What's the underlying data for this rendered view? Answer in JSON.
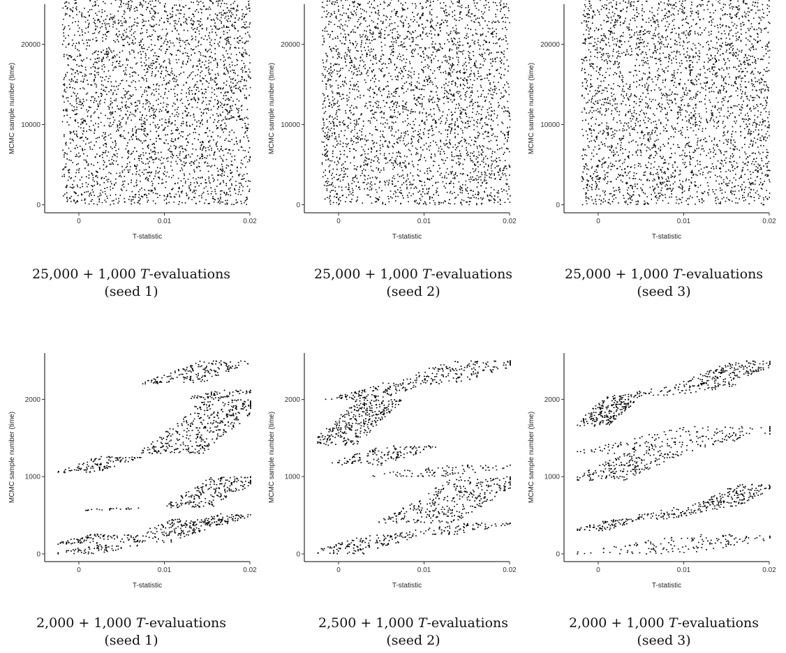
{
  "chart_data": [
    {
      "type": "scatter",
      "xlabel": "T-statistic",
      "ylabel": "MCMC sample number (time)",
      "xlim": [
        -0.004,
        0.02
      ],
      "ylim": [
        -1000,
        25000
      ],
      "x_ticks": [
        0,
        0.01,
        0.02
      ],
      "x_tick_labels": [
        "0",
        "0.01",
        "0.02"
      ],
      "y_ticks": [
        0,
        10000,
        20000
      ],
      "y_tick_labels": [
        "0",
        "10000",
        "20000"
      ],
      "grid": false,
      "caption_prefix": "25,000 + 1,000 ",
      "caption_var": "T",
      "caption_suffix": "-evaluations",
      "caption_seed": "(seed 1)",
      "pattern": "dense",
      "seed": 1,
      "n_samples": 26000
    },
    {
      "type": "scatter",
      "xlabel": "T-statistic",
      "ylabel": "MCMC sample number (time)",
      "xlim": [
        -0.004,
        0.02
      ],
      "ylim": [
        -1000,
        25000
      ],
      "x_ticks": [
        0,
        0.01,
        0.02
      ],
      "x_tick_labels": [
        "0",
        "0.01",
        "0.02"
      ],
      "y_ticks": [
        0,
        10000,
        20000
      ],
      "y_tick_labels": [
        "0",
        "10000",
        "20000"
      ],
      "grid": false,
      "caption_prefix": "25,000 + 1,000 ",
      "caption_var": "T",
      "caption_suffix": "-evaluations",
      "caption_seed": "(seed 2)",
      "pattern": "dense",
      "seed": 2,
      "n_samples": 26000
    },
    {
      "type": "scatter",
      "xlabel": "T-statistic",
      "ylabel": "MCMC sample number (time)",
      "xlim": [
        -0.004,
        0.02
      ],
      "ylim": [
        -1000,
        25000
      ],
      "x_ticks": [
        0,
        0.01,
        0.02
      ],
      "x_tick_labels": [
        "0",
        "0.01",
        "0.02"
      ],
      "y_ticks": [
        0,
        10000,
        20000
      ],
      "y_tick_labels": [
        "0",
        "10000",
        "20000"
      ],
      "grid": false,
      "caption_prefix": "25,000 + 1,000 ",
      "caption_var": "T",
      "caption_suffix": "-evaluations",
      "caption_seed": "(seed 3)",
      "pattern": "dense",
      "seed": 3,
      "n_samples": 26000
    },
    {
      "type": "scatter",
      "xlabel": "T-statistic",
      "ylabel": "MCMC sample number (time)",
      "xlim": [
        -0.004,
        0.02
      ],
      "ylim": [
        -100,
        2600
      ],
      "x_ticks": [
        0,
        0.01,
        0.02
      ],
      "x_tick_labels": [
        "0",
        "0.01",
        "0.02"
      ],
      "y_ticks": [
        0,
        1000,
        2000
      ],
      "y_tick_labels": [
        "0",
        "1000",
        "2000"
      ],
      "grid": false,
      "caption_prefix": "2,000 + 1,000 ",
      "caption_var": "T",
      "caption_suffix": "-evaluations",
      "caption_seed": "(seed 1)",
      "pattern": "sparse",
      "seed": 11,
      "n_samples": 2500,
      "clusters": [
        {
          "t0": 0,
          "t1": 120,
          "x0": -0.002,
          "x1": 0.006
        },
        {
          "t0": 120,
          "t1": 260,
          "x0": -0.002,
          "x1": 0.005
        },
        {
          "t0": 150,
          "t1": 450,
          "x0": 0.006,
          "x1": 0.016
        },
        {
          "t0": 360,
          "t1": 520,
          "x0": 0.013,
          "x1": 0.02
        },
        {
          "t0": 560,
          "t1": 600,
          "x0": 0.001,
          "x1": 0.007
        },
        {
          "t0": 600,
          "t1": 1000,
          "x0": 0.011,
          "x1": 0.02
        },
        {
          "t0": 1050,
          "t1": 1260,
          "x0": -0.0015,
          "x1": 0.006
        },
        {
          "t0": 1300,
          "t1": 2000,
          "x0": 0.009,
          "x1": 0.02
        },
        {
          "t0": 2000,
          "t1": 2120,
          "x0": 0.013,
          "x1": 0.02
        },
        {
          "t0": 2200,
          "t1": 2500,
          "x0": 0.009,
          "x1": 0.019
        }
      ]
    },
    {
      "type": "scatter",
      "xlabel": "T-statistic",
      "ylabel": "MCMC sample number (time)",
      "xlim": [
        -0.004,
        0.02
      ],
      "ylim": [
        -100,
        2600
      ],
      "x_ticks": [
        0,
        0.01,
        0.02
      ],
      "x_tick_labels": [
        "0",
        "0.01",
        "0.02"
      ],
      "y_ticks": [
        0,
        1000,
        2000
      ],
      "y_tick_labels": [
        "0",
        "1000",
        "2000"
      ],
      "grid": false,
      "caption_prefix": "2,500 + 1,000 ",
      "caption_var": "T",
      "caption_suffix": "-evaluations",
      "caption_seed": "(seed 2)",
      "pattern": "sparse",
      "seed": 22,
      "n_samples": 2500,
      "clusters": [
        {
          "t0": 0,
          "t1": 250,
          "x0": -0.002,
          "x1": 0.008
        },
        {
          "t0": 250,
          "t1": 400,
          "x0": 0.008,
          "x1": 0.019
        },
        {
          "t0": 400,
          "t1": 1000,
          "x0": 0.007,
          "x1": 0.02
        },
        {
          "t0": 1000,
          "t1": 1150,
          "x0": 0.005,
          "x1": 0.02
        },
        {
          "t0": 1150,
          "t1": 1400,
          "x0": 0.0,
          "x1": 0.01
        },
        {
          "t0": 1400,
          "t1": 2000,
          "x0": -0.002,
          "x1": 0.006
        },
        {
          "t0": 2000,
          "t1": 2200,
          "x0": 0.0,
          "x1": 0.009
        },
        {
          "t0": 2200,
          "t1": 2500,
          "x0": 0.007,
          "x1": 0.02
        }
      ]
    },
    {
      "type": "scatter",
      "xlabel": "T-statistic",
      "ylabel": "MCMC sample number (time)",
      "xlim": [
        -0.004,
        0.02
      ],
      "ylim": [
        -100,
        2600
      ],
      "x_ticks": [
        0,
        0.01,
        0.02
      ],
      "x_tick_labels": [
        "0",
        "0.01",
        "0.02"
      ],
      "y_ticks": [
        0,
        1000,
        2000
      ],
      "y_tick_labels": [
        "0",
        "1000",
        "2000"
      ],
      "grid": false,
      "caption_prefix": "2,000 + 1,000 ",
      "caption_var": "T",
      "caption_suffix": "-evaluations",
      "caption_seed": "(seed 3)",
      "pattern": "sparse",
      "seed": 33,
      "n_samples": 2500,
      "clusters": [
        {
          "t0": 0,
          "t1": 250,
          "x0": 0.0,
          "x1": 0.02
        },
        {
          "t0": 300,
          "t1": 450,
          "x0": -0.002,
          "x1": 0.004
        },
        {
          "t0": 450,
          "t1": 600,
          "x0": 0.004,
          "x1": 0.013
        },
        {
          "t0": 600,
          "t1": 900,
          "x0": 0.012,
          "x1": 0.02
        },
        {
          "t0": 950,
          "t1": 1300,
          "x0": -0.002,
          "x1": 0.008
        },
        {
          "t0": 1300,
          "t1": 1650,
          "x0": 0.0,
          "x1": 0.02
        },
        {
          "t0": 1650,
          "t1": 2050,
          "x0": -0.002,
          "x1": 0.004
        },
        {
          "t0": 2050,
          "t1": 2200,
          "x0": 0.004,
          "x1": 0.015
        },
        {
          "t0": 2200,
          "t1": 2500,
          "x0": 0.011,
          "x1": 0.02
        }
      ]
    }
  ]
}
